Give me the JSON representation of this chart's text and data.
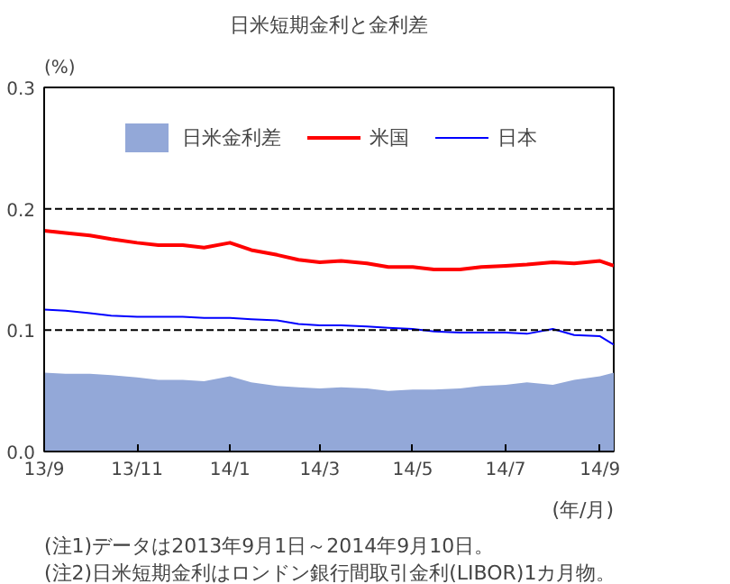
{
  "chart_data": {
    "type": "line",
    "title": "日米短期金利と金利差",
    "ylabel": "(%)",
    "xlabel": "(年/月)",
    "annotations": [
      "(注1)データは2013年9月1日～2014年9月10日。",
      "(注2)日米短期金利はロンドン銀行間取引金利(LIBOR)1カ月物。"
    ],
    "x": [
      "2013-09-01",
      "2013-09-15",
      "2013-10-01",
      "2013-10-15",
      "2013-11-01",
      "2013-11-15",
      "2013-12-01",
      "2013-12-15",
      "2014-01-01",
      "2014-01-15",
      "2014-02-01",
      "2014-02-15",
      "2014-03-01",
      "2014-03-15",
      "2014-04-01",
      "2014-04-15",
      "2014-05-01",
      "2014-05-15",
      "2014-06-01",
      "2014-06-15",
      "2014-07-01",
      "2014-07-15",
      "2014-08-01",
      "2014-08-15",
      "2014-09-01",
      "2014-09-10"
    ],
    "series": [
      {
        "name": "日米金利差",
        "type": "area",
        "color": "#93a8d8",
        "values": [
          0.065,
          0.064,
          0.064,
          0.063,
          0.061,
          0.059,
          0.059,
          0.058,
          0.062,
          0.057,
          0.054,
          0.053,
          0.052,
          0.053,
          0.052,
          0.05,
          0.051,
          0.051,
          0.052,
          0.054,
          0.055,
          0.057,
          0.055,
          0.059,
          0.062,
          0.065
        ]
      },
      {
        "name": "米国",
        "color": "#ff0000",
        "values": [
          0.182,
          0.18,
          0.178,
          0.175,
          0.172,
          0.17,
          0.17,
          0.168,
          0.172,
          0.166,
          0.162,
          0.158,
          0.156,
          0.157,
          0.155,
          0.152,
          0.152,
          0.15,
          0.15,
          0.152,
          0.153,
          0.154,
          0.156,
          0.155,
          0.157,
          0.153
        ]
      },
      {
        "name": "日本",
        "color": "#0000ff",
        "values": [
          0.117,
          0.116,
          0.114,
          0.112,
          0.111,
          0.111,
          0.111,
          0.11,
          0.11,
          0.109,
          0.108,
          0.105,
          0.104,
          0.104,
          0.103,
          0.102,
          0.101,
          0.099,
          0.098,
          0.098,
          0.098,
          0.097,
          0.101,
          0.096,
          0.095,
          0.088
        ]
      }
    ],
    "xlim": [
      "2013-09-01",
      "2014-09-10"
    ],
    "xticks": [
      {
        "value": "2013-09-01",
        "label": "13/9"
      },
      {
        "value": "2013-11-01",
        "label": "13/11"
      },
      {
        "value": "2014-01-01",
        "label": "14/1"
      },
      {
        "value": "2014-03-01",
        "label": "14/3"
      },
      {
        "value": "2014-05-01",
        "label": "14/5"
      },
      {
        "value": "2014-07-01",
        "label": "14/7"
      },
      {
        "value": "2014-09-01",
        "label": "14/9"
      }
    ],
    "ylim": [
      0,
      0.3
    ],
    "yticks": [
      {
        "value": 0,
        "label": "0.0"
      },
      {
        "value": 0.1,
        "label": "0.1"
      },
      {
        "value": 0.2,
        "label": "0.2"
      },
      {
        "value": 0.3,
        "label": "0.3"
      }
    ],
    "ref_lines": [
      {
        "axis": "y",
        "value": 0.1,
        "color": "#000000",
        "line_style": "dashed"
      },
      {
        "axis": "y",
        "value": 0.2,
        "color": "#000000",
        "line_style": "dashed"
      }
    ],
    "legend": "top",
    "grid": false,
    "marker": "none"
  }
}
